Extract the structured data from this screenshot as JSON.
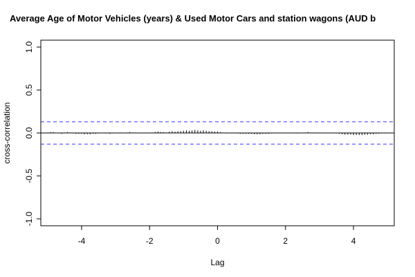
{
  "chart_data": {
    "type": "bar",
    "title": "Average Age of Motor Vehicles (years) & Used Motor Cars and station wagons (AUD b",
    "xlabel": "Lag",
    "ylabel": "cross-correlation",
    "xlim": [
      -5.2,
      5.2
    ],
    "ylim": [
      -1.0,
      1.0
    ],
    "xticks": [
      -4,
      -2,
      0,
      2,
      4
    ],
    "xtick_labels": [
      "-4",
      "-2",
      "0",
      "2",
      "4"
    ],
    "yticks": [
      -1.0,
      -0.5,
      0.0,
      0.5,
      1.0
    ],
    "ytick_labels": [
      "-1.0",
      "-0.5",
      "0.0",
      "0.5",
      "1.0"
    ],
    "confidence_band": 0.13,
    "grid": false,
    "colors": {
      "bars": "#000000",
      "confidence": "#3333ff",
      "zero_line": "#000000"
    },
    "x": [
      -5.0,
      -4.917,
      -4.833,
      -4.75,
      -4.667,
      -4.583,
      -4.5,
      -4.417,
      -4.333,
      -4.25,
      -4.167,
      -4.083,
      -4.0,
      -3.917,
      -3.833,
      -3.75,
      -3.667,
      -3.583,
      -3.5,
      -3.417,
      -3.333,
      -3.25,
      -3.167,
      -3.083,
      -3.0,
      -2.917,
      -2.833,
      -2.75,
      -2.667,
      -2.583,
      -2.5,
      -2.417,
      -2.333,
      -2.25,
      -2.167,
      -2.083,
      -2.0,
      -1.917,
      -1.833,
      -1.75,
      -1.667,
      -1.583,
      -1.5,
      -1.417,
      -1.333,
      -1.25,
      -1.167,
      -1.083,
      -1.0,
      -0.917,
      -0.833,
      -0.75,
      -0.667,
      -0.583,
      -0.5,
      -0.417,
      -0.333,
      -0.25,
      -0.167,
      -0.083,
      0.0,
      0.083,
      0.167,
      0.25,
      0.333,
      0.417,
      0.5,
      0.583,
      0.667,
      0.75,
      0.833,
      0.917,
      1.0,
      1.083,
      1.167,
      1.25,
      1.333,
      1.417,
      1.5,
      1.583,
      1.667,
      1.75,
      1.833,
      1.917,
      2.0,
      2.083,
      2.167,
      2.25,
      2.333,
      2.417,
      2.5,
      2.583,
      2.667,
      2.75,
      2.833,
      2.917,
      3.0,
      3.083,
      3.167,
      3.25,
      3.333,
      3.417,
      3.5,
      3.583,
      3.667,
      3.75,
      3.833,
      3.917,
      4.0,
      4.083,
      4.167,
      4.25,
      4.333,
      4.417,
      4.5,
      4.583,
      4.667,
      4.75,
      4.833,
      4.917,
      5.0
    ],
    "values": [
      0.0,
      0.01,
      0.01,
      0.0,
      -0.005,
      -0.01,
      0.005,
      0.01,
      0.005,
      -0.005,
      -0.01,
      -0.01,
      -0.01,
      -0.015,
      -0.015,
      -0.015,
      -0.01,
      -0.01,
      -0.005,
      0.0,
      -0.005,
      -0.005,
      -0.01,
      -0.005,
      0.0,
      0.005,
      0.005,
      0.0,
      0.005,
      0.01,
      0.005,
      0.005,
      0.0,
      -0.005,
      0.0,
      0.005,
      0.0,
      0.005,
      0.01,
      0.015,
      0.01,
      0.01,
      0.005,
      0.015,
      0.02,
      0.015,
      0.02,
      0.02,
      0.025,
      0.03,
      0.025,
      0.03,
      0.035,
      0.03,
      0.025,
      0.03,
      0.025,
      0.02,
      0.02,
      0.015,
      0.015,
      0.01,
      0.005,
      0.005,
      0.0,
      -0.005,
      -0.005,
      -0.005,
      -0.01,
      -0.01,
      -0.01,
      -0.01,
      -0.01,
      -0.015,
      -0.015,
      -0.015,
      -0.01,
      -0.01,
      -0.01,
      -0.005,
      -0.005,
      -0.005,
      -0.005,
      -0.005,
      -0.005,
      -0.005,
      -0.005,
      -0.005,
      -0.005,
      0.0,
      0.0,
      0.005,
      0.01,
      0.005,
      0.005,
      0.005,
      0.005,
      0.0,
      0.0,
      0.0,
      0.0,
      -0.005,
      -0.005,
      -0.01,
      -0.015,
      -0.02,
      -0.02,
      -0.02,
      -0.025,
      -0.025,
      -0.025,
      -0.025,
      -0.02,
      -0.02,
      -0.015,
      -0.015,
      -0.01,
      -0.01,
      -0.005,
      -0.005,
      0.0
    ]
  }
}
